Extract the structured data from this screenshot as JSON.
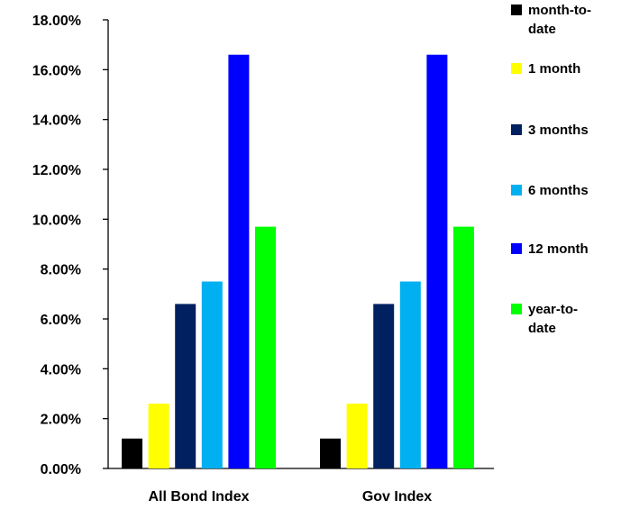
{
  "chart_data": {
    "type": "bar",
    "categories": [
      "All Bond Index",
      "Gov Index"
    ],
    "series": [
      {
        "name": "month-to-date",
        "values": [
          1.2,
          1.2
        ],
        "color": "#000000"
      },
      {
        "name": "1 month",
        "values": [
          2.6,
          2.6
        ],
        "color": "#ffff00"
      },
      {
        "name": "3 months",
        "values": [
          6.6,
          6.6
        ],
        "color": "#002060"
      },
      {
        "name": "6 months",
        "values": [
          7.5,
          7.5
        ],
        "color": "#00b0f0"
      },
      {
        "name": "12 month",
        "values": [
          16.6,
          16.6
        ],
        "color": "#0000ff"
      },
      {
        "name": "year-to-date",
        "values": [
          9.7,
          9.7
        ],
        "color": "#00ff00"
      }
    ],
    "ylim": [
      0,
      18
    ],
    "yticks": [
      "0.00%",
      "2.00%",
      "4.00%",
      "6.00%",
      "8.00%",
      "10.00%",
      "12.00%",
      "14.00%",
      "16.00%",
      "18.00%"
    ],
    "ytick_values": [
      0,
      2,
      4,
      6,
      8,
      10,
      12,
      14,
      16,
      18
    ],
    "legend_position": "right",
    "legend_labels": [
      [
        "month-to-",
        "date"
      ],
      [
        "1 month"
      ],
      [
        "3 months"
      ],
      [
        "6 months"
      ],
      [
        "12 month"
      ],
      [
        "year-to-",
        "date"
      ]
    ],
    "grid": false
  }
}
